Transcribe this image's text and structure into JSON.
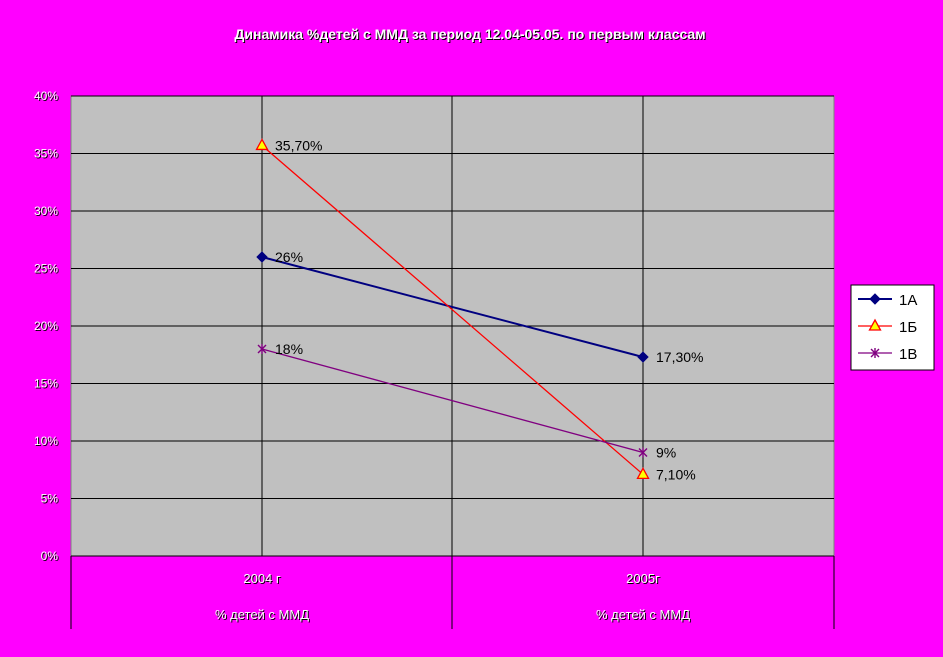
{
  "chart_data": {
    "type": "line",
    "title": "Динамика %детей с ММД  за период 12.04-05.05. по первым классам",
    "categories": [
      "2004 г",
      "2005г"
    ],
    "category_sublabels": [
      "% детей с ММД",
      "% детей с ММД"
    ],
    "y_ticks": [
      "0%",
      "5%",
      "10%",
      "15%",
      "20%",
      "25%",
      "30%",
      "35%",
      "40%"
    ],
    "ylim": [
      0,
      40
    ],
    "grid": true,
    "legend_position": "right",
    "series": [
      {
        "name": "1А",
        "values": [
          26,
          17.3
        ],
        "labels": [
          "26%",
          "17,30%"
        ],
        "color": "#000080",
        "marker": "diamond"
      },
      {
        "name": "1Б",
        "values": [
          35.7,
          7.1
        ],
        "labels": [
          "35,70%",
          "7,10%"
        ],
        "color": "#ff0000",
        "marker": "triangle"
      },
      {
        "name": "1В",
        "values": [
          18,
          9
        ],
        "labels": [
          "18%",
          "9%"
        ],
        "color": "#800080",
        "marker": "star"
      }
    ]
  }
}
